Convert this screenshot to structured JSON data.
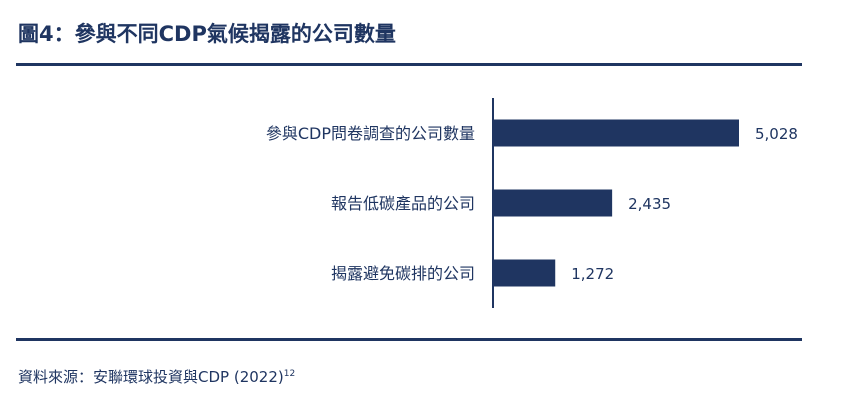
{
  "header": {
    "title": "圖4：參與不同CDP氣候揭露的公司數量"
  },
  "chart_data": {
    "type": "bar",
    "orientation": "horizontal",
    "categories": [
      "參與CDP問卷調查的公司數量",
      "報告低碳產品的公司",
      "揭露避免碳排的公司"
    ],
    "values": [
      5028,
      2435,
      1272
    ],
    "value_labels": [
      "5,028",
      "2,435",
      "1,272"
    ],
    "xlim": [
      0,
      6000
    ],
    "grid": false,
    "bar_color": "#1f3561"
  },
  "footer": {
    "source": "資料來源：安聯環球投資與CDP (2022)",
    "footnote": "12"
  }
}
